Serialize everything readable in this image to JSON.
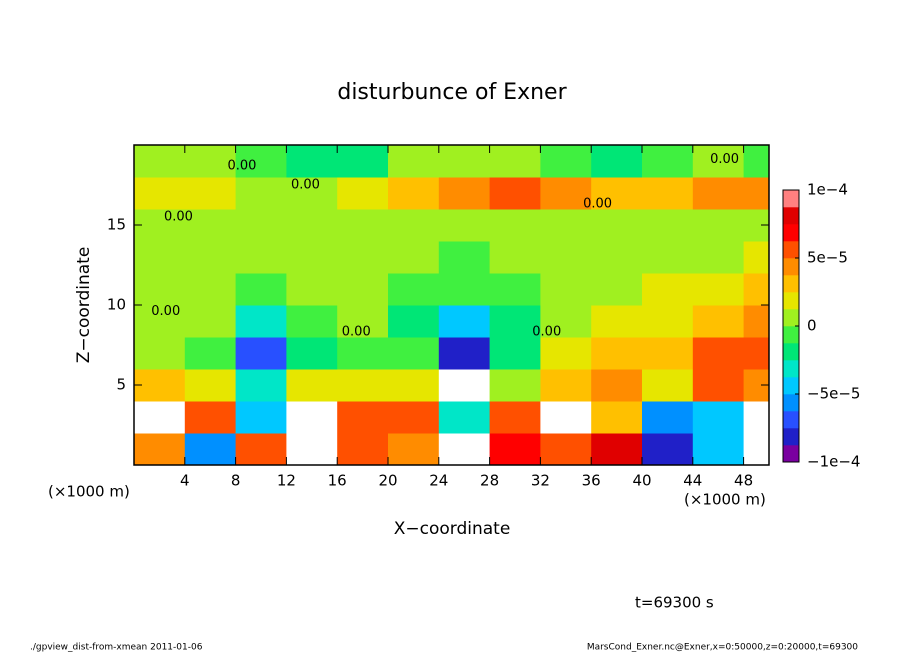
{
  "chart_data": {
    "type": "contour",
    "title": "disturbunce of Exner",
    "x_label": "X−coordinate",
    "y_label": "Z−coordinate",
    "x_unit_labels": [
      "(×1000 m)",
      "(×1000 m)"
    ],
    "time_label": "t=69300 s",
    "footer_left": "./gpview_dist-from-xmean  2011-01-06",
    "footer_right": "MarsCond_Exner.nc@Exner,x=0:50000,z=0:20000,t=69300",
    "xlim": [
      0,
      50
    ],
    "ylim": [
      0,
      20
    ],
    "xticks": [
      4,
      8,
      12,
      16,
      20,
      24,
      28,
      32,
      36,
      40,
      44,
      48
    ],
    "yticks": [
      5,
      10,
      15
    ],
    "x": [
      2,
      6,
      10,
      14,
      18,
      22,
      26,
      30,
      34,
      38,
      42,
      46,
      50
    ],
    "z": [
      1,
      3,
      5,
      7,
      9,
      11,
      13,
      15,
      17,
      19
    ],
    "values": [
      [
        4e-05,
        -6e-05,
        6e-05,
        0.00012,
        6e-05,
        4e-05,
        -0.00015,
        7e-05,
        5e-05,
        8e-05,
        -8e-05,
        -4e-05,
        -0.00015
      ],
      [
        0.00012,
        6e-05,
        -5e-05,
        0.00012,
        5e-05,
        6e-05,
        -3e-05,
        5e-05,
        0.00012,
        3e-05,
        -6e-05,
        -5e-05,
        0.00012
      ],
      [
        3e-05,
        2e-05,
        -3e-05,
        2e-05,
        2e-05,
        2e-05,
        -0.00012,
        1e-05,
        3e-05,
        4e-05,
        2e-05,
        6e-05,
        4e-05
      ],
      [
        1e-05,
        -1e-05,
        -7e-05,
        -2e-05,
        -1e-05,
        -1e-05,
        -8e-05,
        -2e-05,
        2e-05,
        3e-05,
        3e-05,
        5e-05,
        5e-05
      ],
      [
        1e-05,
        0,
        -3e-05,
        -1e-05,
        0,
        -2e-05,
        -4e-05,
        -2e-05,
        0,
        2e-05,
        2e-05,
        3e-05,
        4e-05
      ],
      [
        1e-05,
        0,
        -1e-05,
        0,
        0,
        -1e-05,
        -1e-05,
        -1e-05,
        0,
        1e-05,
        2e-05,
        2e-05,
        3e-05
      ],
      [
        1e-05,
        1e-05,
        0,
        0,
        0,
        0,
        -1e-05,
        0,
        0,
        1e-05,
        1e-05,
        1e-05,
        2e-05
      ],
      [
        1e-05,
        0,
        0,
        0,
        0,
        0,
        0,
        0,
        0,
        0,
        1e-05,
        1e-05,
        1e-05
      ],
      [
        2e-05,
        2e-05,
        1e-05,
        0,
        2e-05,
        3e-05,
        4e-05,
        5e-05,
        4e-05,
        3e-05,
        3e-05,
        4e-05,
        4e-05
      ],
      [
        0,
        0,
        -1e-05,
        -2e-05,
        -2e-05,
        0,
        0,
        0,
        -1e-05,
        -2e-05,
        -1e-05,
        0,
        -1e-05
      ]
    ],
    "clim": [
      -0.0001,
      0.0001
    ],
    "cticks": [
      {
        "value": -0.0001,
        "label": "−1e−4"
      },
      {
        "value": -5e-05,
        "label": "−5e−5"
      },
      0,
      {
        "value": 5e-05,
        "label": "5e−5"
      },
      {
        "value": 0.0001,
        "label": "1e−4"
      }
    ],
    "colors": [
      "#7a00a0",
      "#2020c8",
      "#2850ff",
      "#0090ff",
      "#00c8ff",
      "#00e6c8",
      "#00e676",
      "#40f040",
      "#a0f020",
      "#e6e600",
      "#ffc000",
      "#ff8c00",
      "#ff5000",
      "#ff0000",
      "#e00000",
      "#ff8080"
    ],
    "out_of_range_color": "#ffffff",
    "contour_labels": [
      {
        "text": "0.00",
        "x": 8.5,
        "z": 18.7
      },
      {
        "text": "0.00",
        "x": 46.5,
        "z": 19.1
      },
      {
        "text": "0.00",
        "x": 13.5,
        "z": 17.5
      },
      {
        "text": "0.00",
        "x": 36.5,
        "z": 16.3
      },
      {
        "text": "0.00",
        "x": 3.5,
        "z": 15.5
      },
      {
        "text": "0.00",
        "x": 2.5,
        "z": 9.6
      },
      {
        "text": "0.00",
        "x": 17.5,
        "z": 8.3
      },
      {
        "text": "0.00",
        "x": 32.5,
        "z": 8.3
      }
    ]
  }
}
